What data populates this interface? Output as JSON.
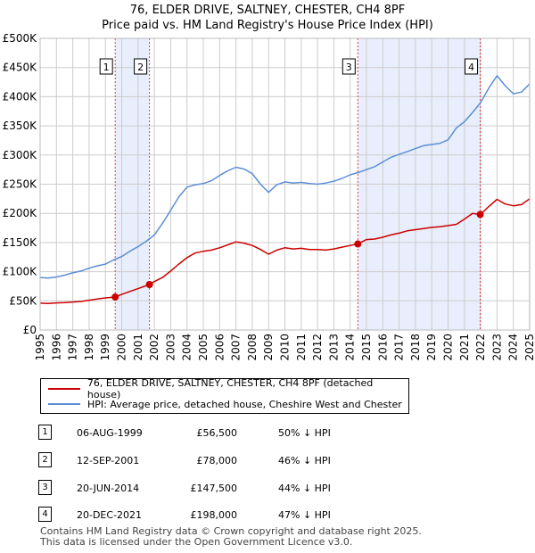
{
  "title": "76, ELDER DRIVE, SALTNEY, CHESTER, CH4 8PF",
  "subtitle": "Price paid vs. HM Land Registry's House Price Index (HPI)",
  "colors": {
    "property": "#cc0000",
    "hpi": "#5b8ed6",
    "shade": "#e8eefb",
    "grid": "#cccccc",
    "marker_line": "#e04040"
  },
  "legend": {
    "property_label": "76, ELDER DRIVE, SALTNEY, CHESTER, CH4 8PF (detached house)",
    "hpi_label": "HPI: Average price, detached house, Cheshire West and Chester"
  },
  "transactions": [
    {
      "num": "1",
      "date": "06-AUG-1999",
      "price": "£56,500",
      "rel": "50% ↓ HPI"
    },
    {
      "num": "2",
      "date": "12-SEP-2001",
      "price": "£78,000",
      "rel": "46% ↓ HPI"
    },
    {
      "num": "3",
      "date": "20-JUN-2014",
      "price": "£147,500",
      "rel": "44% ↓ HPI"
    },
    {
      "num": "4",
      "date": "20-DEC-2021",
      "price": "£198,000",
      "rel": "47% ↓ HPI"
    }
  ],
  "footer": {
    "line1": "Contains HM Land Registry data © Crown copyright and database right 2025.",
    "line2": "This data is licensed under the Open Government Licence v3.0."
  },
  "chart_data": {
    "type": "line",
    "title": "76, ELDER DRIVE, SALTNEY, CHESTER, CH4 8PF",
    "subtitle": "Price paid vs. HM Land Registry's House Price Index (HPI)",
    "xlim": [
      1995,
      2025
    ],
    "ylim": [
      0,
      500000
    ],
    "yticks": [
      0,
      50000,
      100000,
      150000,
      200000,
      250000,
      300000,
      350000,
      400000,
      450000,
      500000
    ],
    "ytick_labels": [
      "£0",
      "£50K",
      "£100K",
      "£150K",
      "£200K",
      "£250K",
      "£300K",
      "£350K",
      "£400K",
      "£450K",
      "£500K"
    ],
    "xticks": [
      "1995",
      "1996",
      "1997",
      "1998",
      "1999",
      "2000",
      "2001",
      "2002",
      "2003",
      "2004",
      "2005",
      "2006",
      "2007",
      "2008",
      "2009",
      "2010",
      "2011",
      "2012",
      "2013",
      "2014",
      "2015",
      "2016",
      "2017",
      "2018",
      "2019",
      "2020",
      "2021",
      "2022",
      "2023",
      "2024",
      "2025"
    ],
    "shaded_periods": [
      [
        1999.6,
        2001.7
      ],
      [
        2014.47,
        2021.97
      ]
    ],
    "sales": [
      {
        "label": "1",
        "x": 1999.6,
        "y": 56500
      },
      {
        "label": "2",
        "x": 2001.7,
        "y": 78000
      },
      {
        "label": "3",
        "x": 2014.47,
        "y": 147500
      },
      {
        "label": "4",
        "x": 2021.97,
        "y": 198000
      }
    ],
    "series": [
      {
        "name": "76, ELDER DRIVE, SALTNEY, CHESTER, CH4 8PF (detached house)",
        "x": [
          1995,
          1995.5,
          1996,
          1996.5,
          1997,
          1997.5,
          1998,
          1998.5,
          1999,
          1999.6,
          2000,
          2000.5,
          2001,
          2001.7,
          2002,
          2002.5,
          2003,
          2003.5,
          2004,
          2004.5,
          2005,
          2005.5,
          2006,
          2006.5,
          2007,
          2007.5,
          2008,
          2008.5,
          2009,
          2009.5,
          2010,
          2010.5,
          2011,
          2011.5,
          2012,
          2012.5,
          2013,
          2013.5,
          2014,
          2014.47,
          2015,
          2015.5,
          2016,
          2016.5,
          2017,
          2017.5,
          2018,
          2018.5,
          2019,
          2019.5,
          2020,
          2020.5,
          2021,
          2021.5,
          2021.97,
          2022.5,
          2023,
          2023.5,
          2024,
          2024.5,
          2025
        ],
        "values": [
          46000,
          45500,
          46500,
          47000,
          48000,
          49000,
          51000,
          53000,
          55000,
          56500,
          61000,
          66000,
          71000,
          78000,
          83000,
          90000,
          101000,
          113000,
          124000,
          132000,
          135000,
          137000,
          141000,
          146000,
          151000,
          149000,
          145000,
          138000,
          130000,
          137000,
          141000,
          139000,
          140000,
          138000,
          138000,
          137000,
          139000,
          142000,
          145000,
          147500,
          155000,
          156000,
          159000,
          163000,
          166000,
          170000,
          172000,
          174000,
          176000,
          177000,
          179000,
          181000,
          190000,
          200000,
          198000,
          212000,
          224000,
          216000,
          213000,
          215000,
          225000
        ]
      },
      {
        "name": "HPI: Average price, detached house, Cheshire West and Chester",
        "x": [
          1995,
          1995.5,
          1996,
          1996.5,
          1997,
          1997.5,
          1998,
          1998.5,
          1999,
          1999.5,
          2000,
          2000.5,
          2001,
          2001.5,
          2002,
          2002.5,
          2003,
          2003.5,
          2004,
          2004.5,
          2005,
          2005.5,
          2006,
          2006.5,
          2007,
          2007.5,
          2008,
          2008.5,
          2009,
          2009.5,
          2010,
          2010.5,
          2011,
          2011.5,
          2012,
          2012.5,
          2013,
          2013.5,
          2014,
          2014.5,
          2015,
          2015.5,
          2016,
          2016.5,
          2017,
          2017.5,
          2018,
          2018.5,
          2019,
          2019.5,
          2020,
          2020.5,
          2021,
          2021.5,
          2022,
          2022.5,
          2023,
          2023.5,
          2024,
          2024.5,
          2025
        ],
        "values": [
          90000,
          89000,
          91000,
          94000,
          98000,
          101000,
          106000,
          110000,
          113000,
          120000,
          126000,
          135000,
          143000,
          152000,
          163000,
          183000,
          205000,
          228000,
          245000,
          249000,
          251000,
          256000,
          265000,
          273000,
          279000,
          276000,
          268000,
          250000,
          236000,
          249000,
          254000,
          252000,
          253000,
          251000,
          250000,
          252000,
          255000,
          260000,
          266000,
          270000,
          275000,
          280000,
          288000,
          296000,
          301000,
          306000,
          311000,
          316000,
          318000,
          320000,
          326000,
          346000,
          357000,
          373000,
          390000,
          415000,
          436000,
          419000,
          405000,
          408000,
          422000
        ]
      }
    ]
  }
}
